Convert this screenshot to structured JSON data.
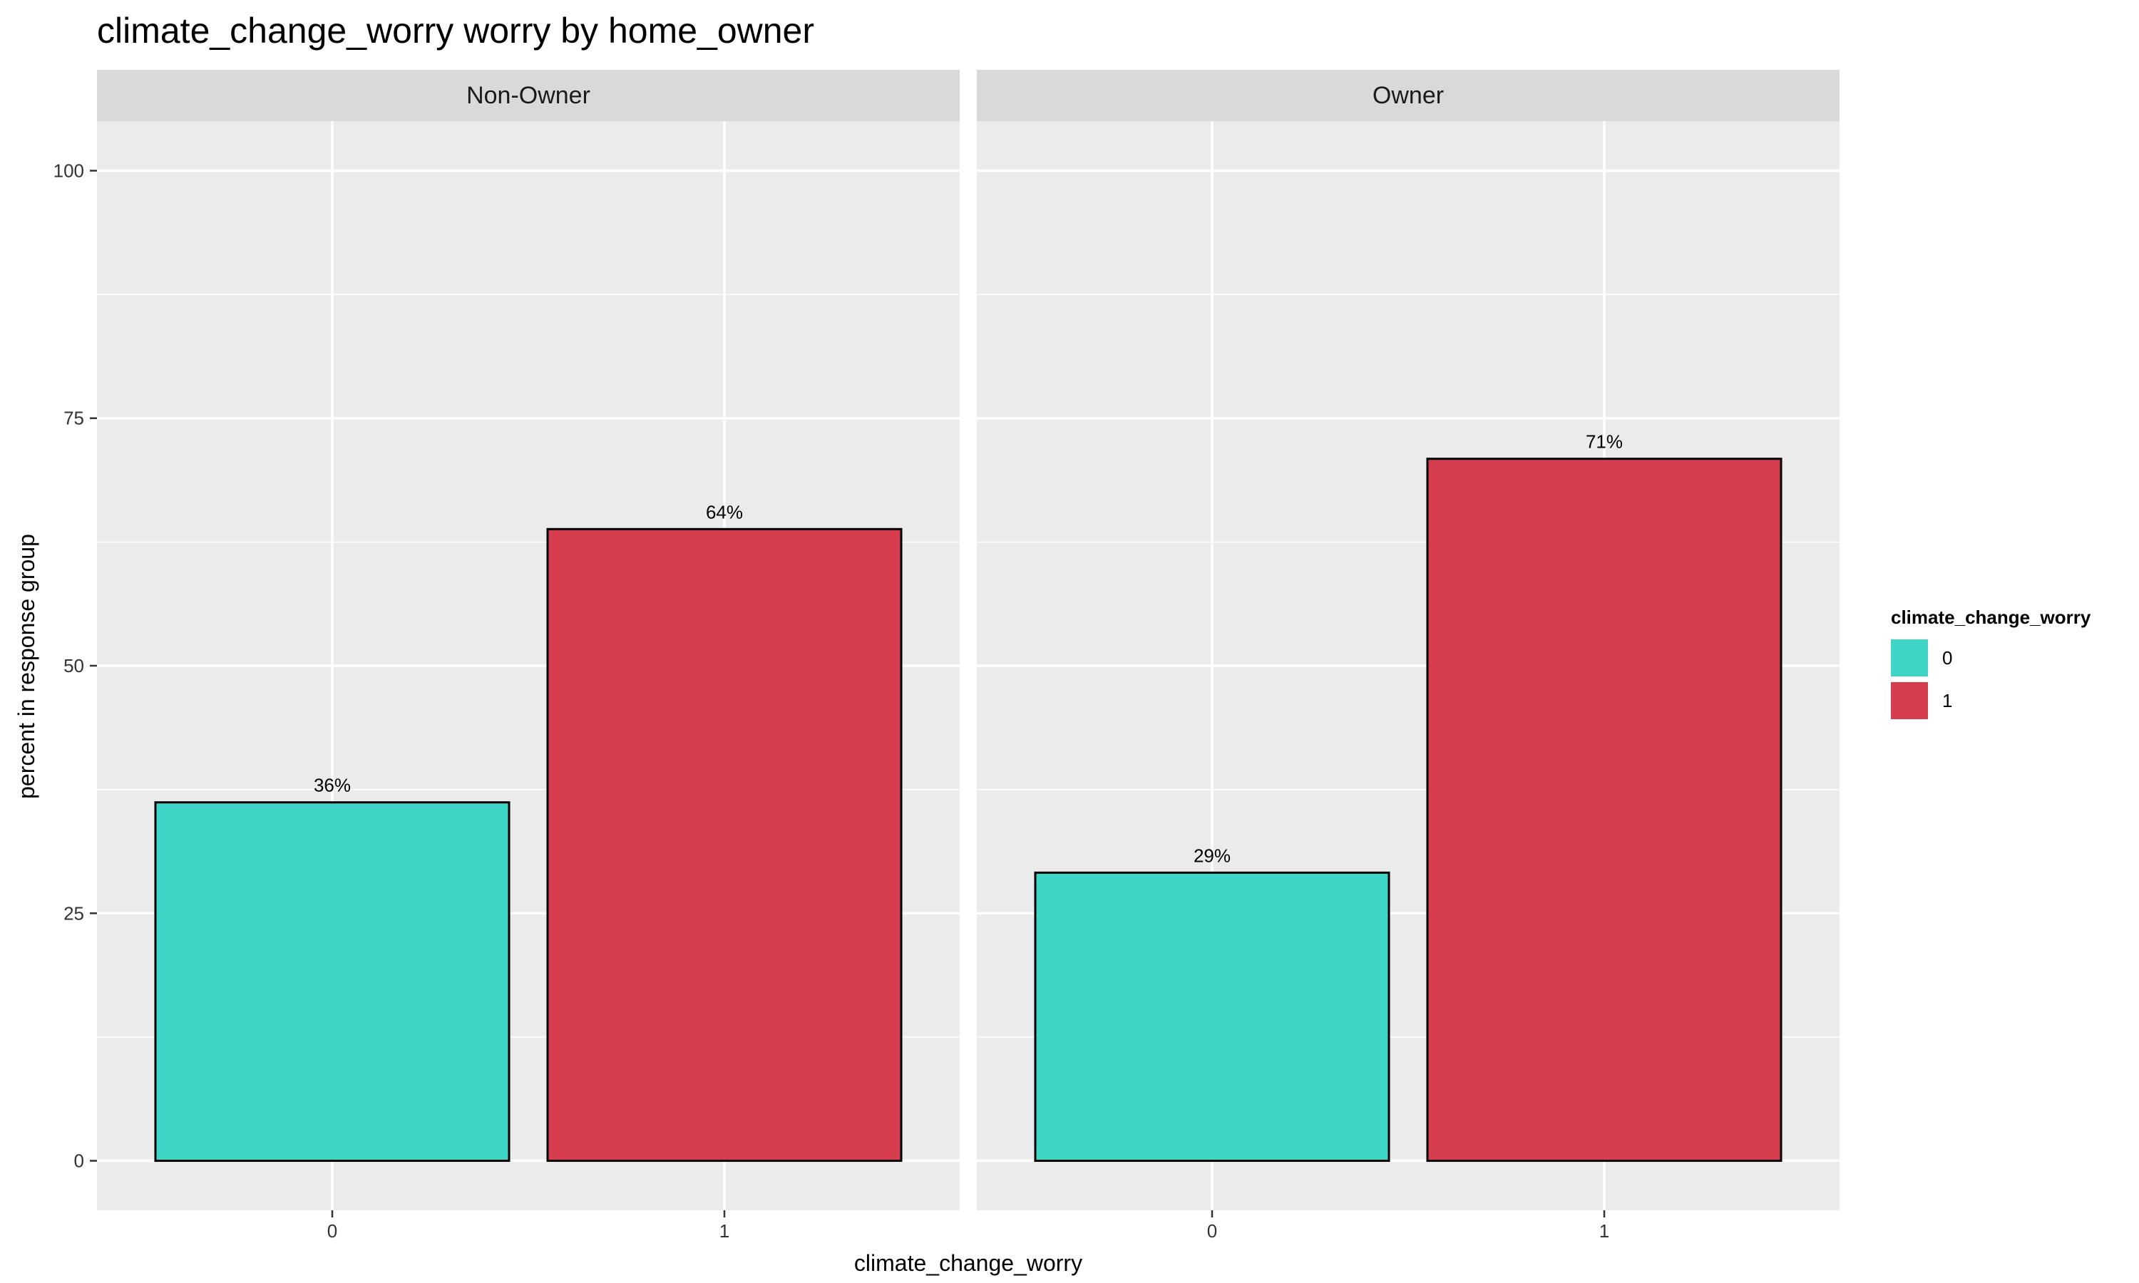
{
  "chart_data": {
    "type": "bar",
    "title": "climate_change_worry worry by home_owner",
    "xlabel": "climate_change_worry",
    "ylabel": "percent in response group",
    "ylim": [
      -5,
      105
    ],
    "yticks": [
      0,
      25,
      50,
      75,
      100
    ],
    "categories": [
      "0",
      "1"
    ],
    "grid": true,
    "legend": {
      "title": "climate_change_worry",
      "position": "right",
      "items": [
        {
          "label": "0",
          "color": "#3dd5c5"
        },
        {
          "label": "1",
          "color": "#d63e50"
        }
      ]
    },
    "facets": [
      {
        "name": "Non-Owner",
        "values": [
          36.2,
          63.8
        ],
        "labels": [
          "36%",
          "64%"
        ]
      },
      {
        "name": "Owner",
        "values": [
          29.1,
          70.9
        ],
        "labels": [
          "29%",
          "71%"
        ]
      }
    ]
  }
}
